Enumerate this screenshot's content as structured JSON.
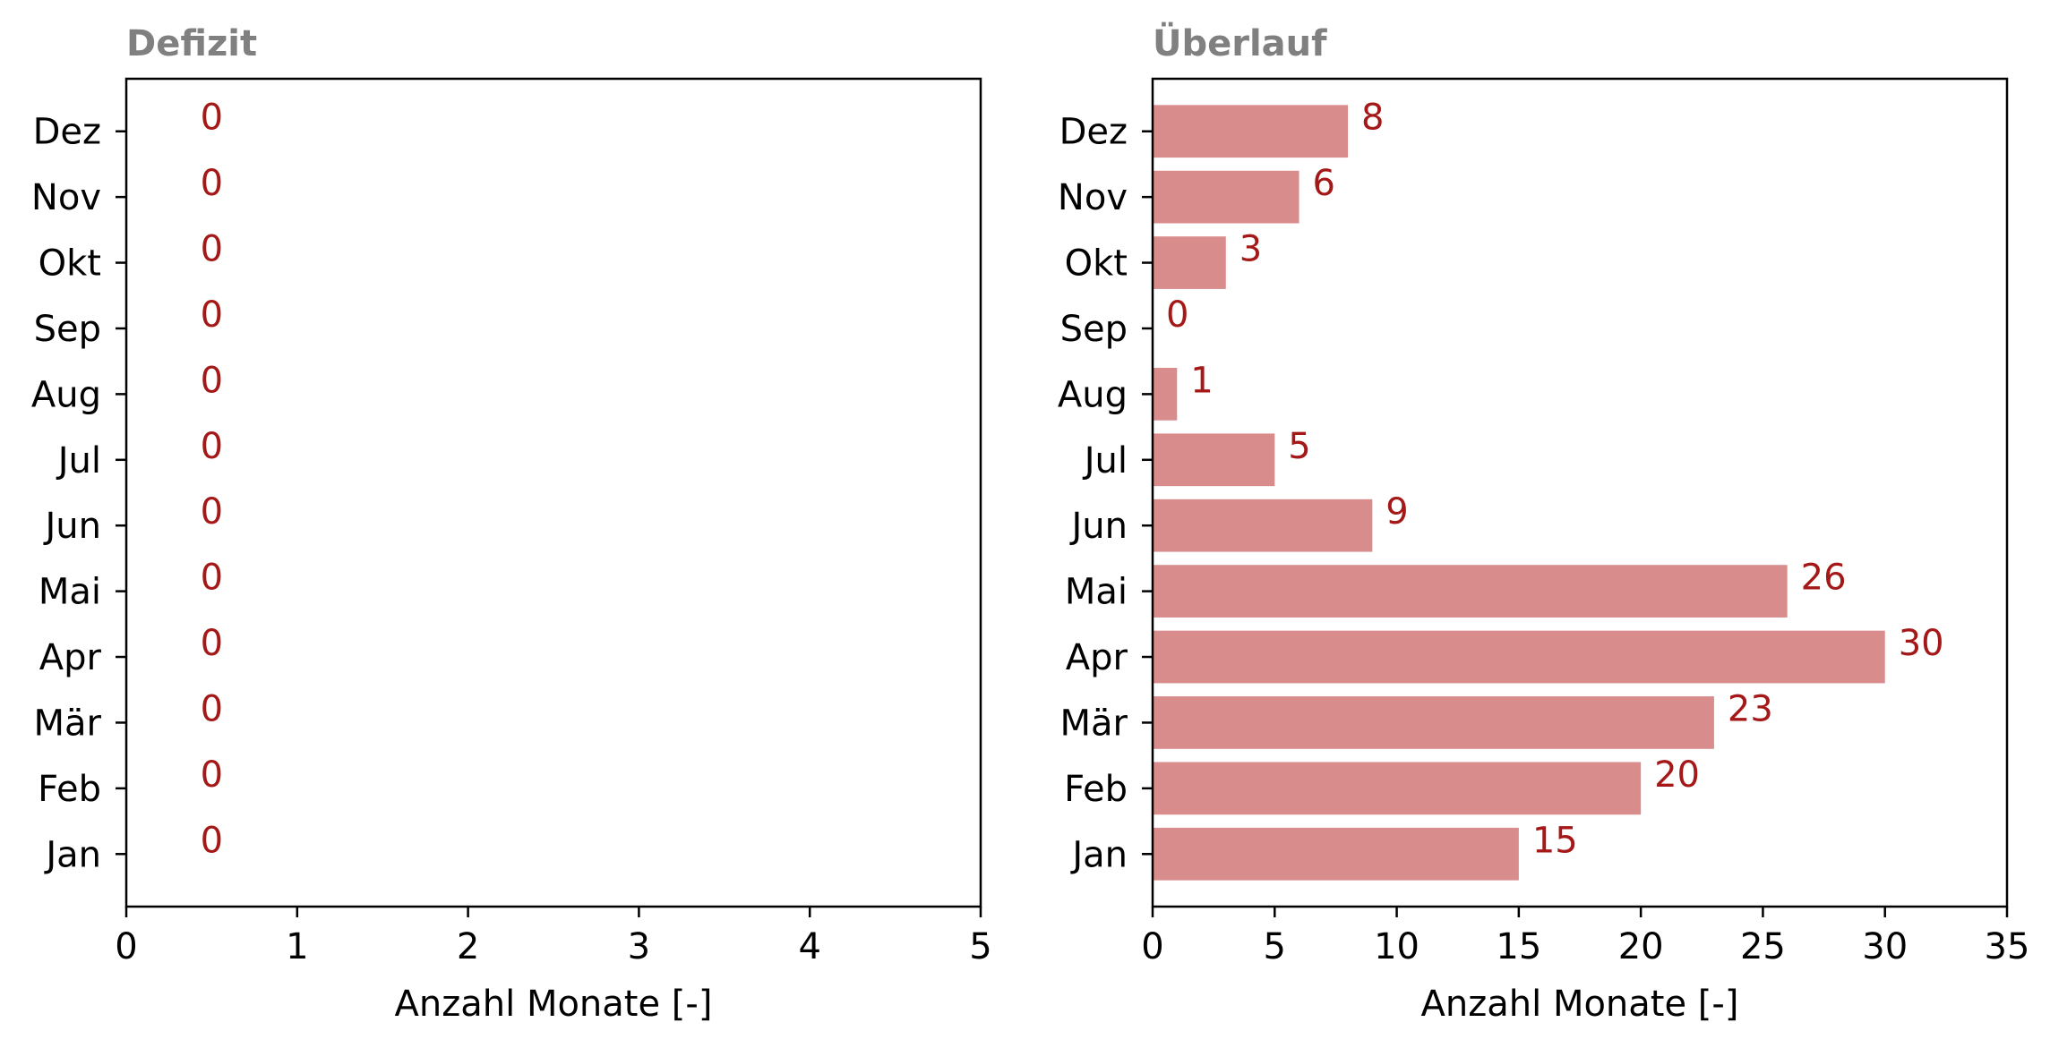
{
  "chart_data": [
    {
      "type": "bar",
      "orientation": "horizontal",
      "title": "Defizit",
      "xlabel": "Anzahl Monate [-]",
      "ylabel": "",
      "categories": [
        "Jan",
        "Feb",
        "Mär",
        "Apr",
        "Mai",
        "Jun",
        "Jul",
        "Aug",
        "Sep",
        "Okt",
        "Nov",
        "Dez"
      ],
      "values": [
        0,
        0,
        0,
        0,
        0,
        0,
        0,
        0,
        0,
        0,
        0,
        0
      ],
      "data_labels": [
        "0",
        "0",
        "0",
        "0",
        "0",
        "0",
        "0",
        "0",
        "0",
        "0",
        "0",
        "0"
      ],
      "xlim": [
        0,
        5
      ],
      "xticks": [
        0,
        1,
        2,
        3,
        4,
        5
      ],
      "xtick_labels": [
        "0",
        "1",
        "2",
        "3",
        "4",
        "5"
      ],
      "grid": false,
      "bar_color": "#d98c8c",
      "label_color": "#a51818"
    },
    {
      "type": "bar",
      "orientation": "horizontal",
      "title": "Überlauf",
      "xlabel": "Anzahl Monate [-]",
      "ylabel": "",
      "categories": [
        "Jan",
        "Feb",
        "Mär",
        "Apr",
        "Mai",
        "Jun",
        "Jul",
        "Aug",
        "Sep",
        "Okt",
        "Nov",
        "Dez"
      ],
      "values": [
        15,
        20,
        23,
        30,
        26,
        9,
        5,
        1,
        0,
        3,
        6,
        8
      ],
      "data_labels": [
        "15",
        "20",
        "23",
        "30",
        "26",
        "9",
        "5",
        "1",
        "0",
        "3",
        "6",
        "8"
      ],
      "xlim": [
        0,
        35
      ],
      "xticks": [
        0,
        5,
        10,
        15,
        20,
        25,
        30,
        35
      ],
      "xtick_labels": [
        "0",
        "5",
        "10",
        "15",
        "20",
        "25",
        "30",
        "35"
      ],
      "grid": false,
      "bar_color": "#d98c8c",
      "label_color": "#a51818"
    }
  ]
}
